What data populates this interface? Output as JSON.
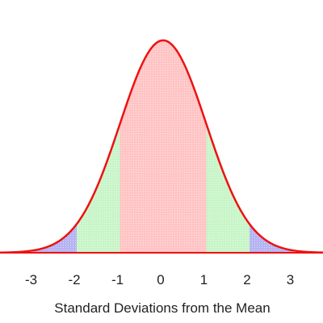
{
  "chart_data": {
    "type": "area",
    "title": "",
    "xlabel": "Standard Deviations from the Mean",
    "ylabel": "",
    "xlim": [
      -3.8,
      3.8
    ],
    "ylim": [
      0,
      0.4
    ],
    "ticks": [
      "-3",
      "-2",
      "-1",
      "0",
      "1",
      "2",
      "3"
    ],
    "tick_values": [
      -3,
      -2,
      -1,
      0,
      1,
      2,
      3
    ],
    "curve": {
      "name": "",
      "color": "#ee1111",
      "distribution": "normal",
      "mean": 0,
      "sd": 1
    },
    "bands": [
      {
        "from": -1,
        "to": 1,
        "color": "#ffc4c4"
      },
      {
        "from": -2,
        "to": -1,
        "color": "#c8f5c8"
      },
      {
        "from": 1,
        "to": 2,
        "color": "#c8f5c8"
      },
      {
        "from": -3,
        "to": -2,
        "color": "#b4b4f2"
      },
      {
        "from": 2,
        "to": 3,
        "color": "#b4b4f2"
      }
    ],
    "grid": false,
    "legend": "none"
  }
}
